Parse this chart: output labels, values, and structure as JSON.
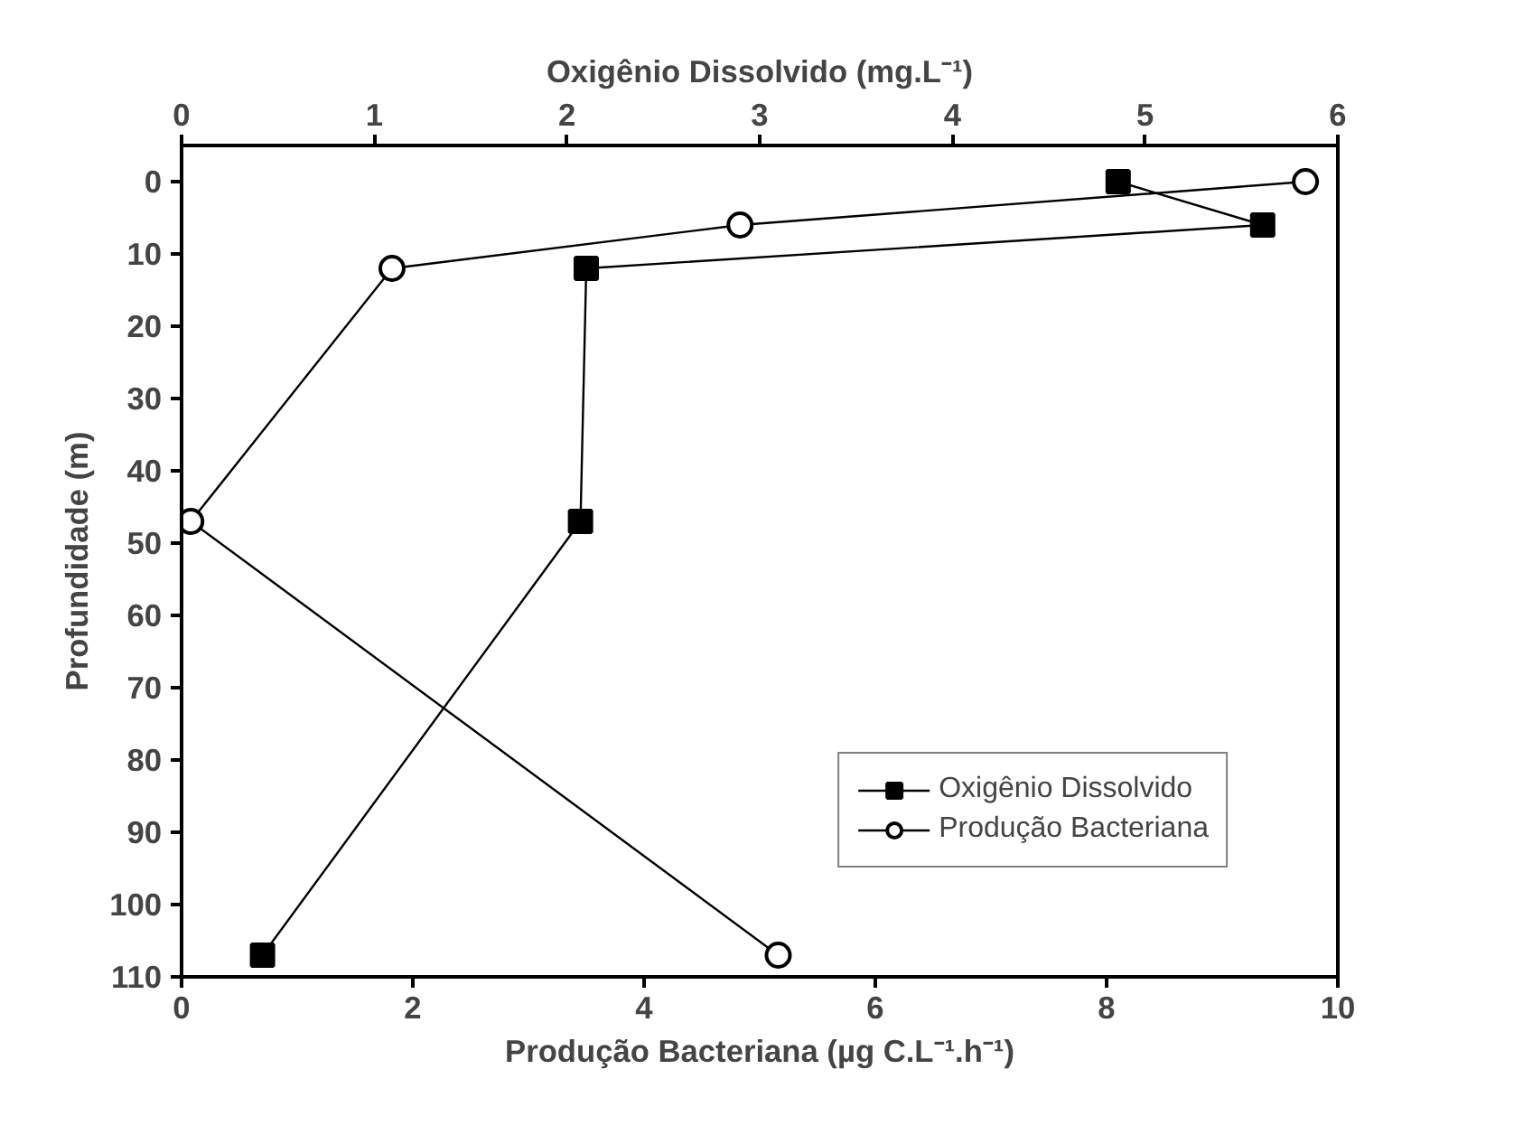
{
  "chart_data": {
    "type": "line",
    "xlabel": "Produção Bacteriana (µg C.L⁻¹.h⁻¹)",
    "x2label": "Oxigênio Dissolvido (mg.L⁻¹)",
    "ylabel": "Profundidade (m)",
    "xlim": [
      0,
      10
    ],
    "xticks": [
      0,
      2,
      4,
      6,
      8,
      10
    ],
    "x2lim": [
      0,
      6
    ],
    "x2ticks": [
      0,
      1,
      2,
      3,
      4,
      5,
      6
    ],
    "ylim": [
      110,
      -5
    ],
    "yticks": [
      0,
      10,
      20,
      30,
      40,
      50,
      60,
      70,
      80,
      90,
      100,
      110
    ],
    "grid": false,
    "legend": "bottom right",
    "line_style": "solid",
    "series": [
      {
        "name": "Oxigênio Dissolvido",
        "color": "#000000",
        "marker": "square",
        "axis": "x2",
        "x": [
          4.86,
          5.61,
          2.1,
          2.07,
          0.42
        ],
        "values": [
          0,
          6,
          12,
          47,
          107
        ]
      },
      {
        "name": "Produção Bacteriana",
        "color": "#000000",
        "marker": "circle",
        "x": [
          9.72,
          4.83,
          1.82,
          0.08,
          5.16
        ],
        "values": [
          0,
          6,
          12,
          47,
          107
        ]
      }
    ]
  }
}
